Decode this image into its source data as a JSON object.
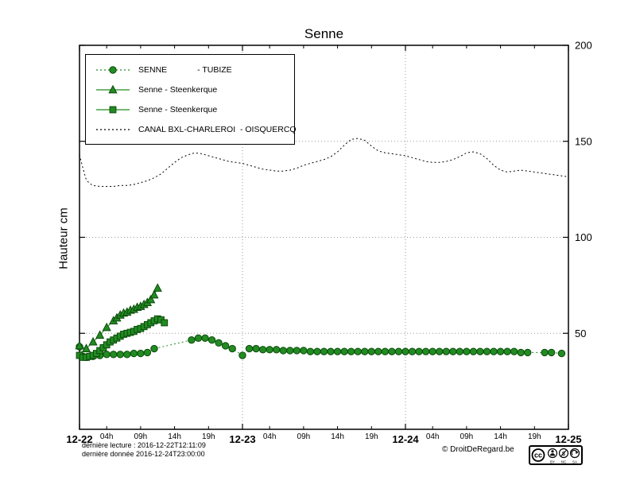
{
  "chart_data": {
    "type": "line",
    "title": "Senne",
    "xlabel": "",
    "ylabel": "Hauteur cm",
    "x_unit": "hours since 2016-12-22 00:00",
    "xlim": [
      0,
      72
    ],
    "ylim": [
      0,
      200
    ],
    "grid": true,
    "legend_position": "top-left",
    "x_major_ticks": [
      {
        "t": 0,
        "label": "12-22"
      },
      {
        "t": 24,
        "label": "12-23"
      },
      {
        "t": 48,
        "label": "12-24"
      },
      {
        "t": 72,
        "label": "12-25"
      }
    ],
    "x_minor_ticks": [
      {
        "t": 4,
        "label": "04h"
      },
      {
        "t": 9,
        "label": "09h"
      },
      {
        "t": 14,
        "label": "14h"
      },
      {
        "t": 19,
        "label": "19h"
      },
      {
        "t": 28,
        "label": "04h"
      },
      {
        "t": 33,
        "label": "09h"
      },
      {
        "t": 38,
        "label": "14h"
      },
      {
        "t": 43,
        "label": "19h"
      },
      {
        "t": 52,
        "label": "04h"
      },
      {
        "t": 57,
        "label": "09h"
      },
      {
        "t": 62,
        "label": "14h"
      },
      {
        "t": 67,
        "label": "19h"
      }
    ],
    "y_ticks": [
      {
        "v": 50,
        "label": "50"
      },
      {
        "v": 100,
        "label": "100"
      },
      {
        "v": 150,
        "label": "150"
      },
      {
        "v": 200,
        "label": "200"
      }
    ],
    "series": [
      {
        "name": "SENNE             - TUBIZE",
        "marker": "circle",
        "line": "dotted",
        "color": "#228b22",
        "edge": "#0b4a0b",
        "points": [
          [
            0,
            43
          ],
          [
            0.5,
            38
          ],
          [
            1,
            37.5
          ],
          [
            1.5,
            38
          ],
          [
            2,
            38
          ],
          [
            3,
            38.5
          ],
          [
            4,
            39
          ],
          [
            5,
            39
          ],
          [
            6,
            39
          ],
          [
            7,
            39
          ],
          [
            8,
            39.5
          ],
          [
            9,
            39.5
          ],
          [
            10,
            40
          ],
          [
            11,
            42
          ],
          [
            16.5,
            46.5
          ],
          [
            17.5,
            47.5
          ],
          [
            18.5,
            47.5
          ],
          [
            19.5,
            46.5
          ],
          [
            20.5,
            45
          ],
          [
            21.5,
            43.5
          ],
          [
            22.5,
            42
          ],
          [
            24,
            38.5
          ],
          [
            25,
            42
          ],
          [
            26,
            42
          ],
          [
            27,
            41.5
          ],
          [
            28,
            41.5
          ],
          [
            29,
            41.5
          ],
          [
            30,
            41
          ],
          [
            31,
            41
          ],
          [
            32,
            41
          ],
          [
            33,
            41
          ],
          [
            34,
            40.5
          ],
          [
            35,
            40.5
          ],
          [
            36,
            40.5
          ],
          [
            37,
            40.5
          ],
          [
            38,
            40.5
          ],
          [
            39,
            40.5
          ],
          [
            40,
            40.5
          ],
          [
            41,
            40.5
          ],
          [
            42,
            40.5
          ],
          [
            43,
            40.5
          ],
          [
            44,
            40.5
          ],
          [
            45,
            40.5
          ],
          [
            46,
            40.5
          ],
          [
            47,
            40.5
          ],
          [
            48,
            40.5
          ],
          [
            49,
            40.5
          ],
          [
            50,
            40.5
          ],
          [
            51,
            40.5
          ],
          [
            52,
            40.5
          ],
          [
            53,
            40.5
          ],
          [
            54,
            40.5
          ],
          [
            55,
            40.5
          ],
          [
            56,
            40.5
          ],
          [
            57,
            40.5
          ],
          [
            58,
            40.5
          ],
          [
            59,
            40.5
          ],
          [
            60,
            40.5
          ],
          [
            61,
            40.5
          ],
          [
            62,
            40.5
          ],
          [
            63,
            40.5
          ],
          [
            64,
            40.5
          ],
          [
            65,
            40
          ],
          [
            66,
            40
          ],
          [
            68.5,
            40
          ],
          [
            69.5,
            40
          ],
          [
            71,
            39.5
          ]
        ]
      },
      {
        "name": "Senne - Steenkerque",
        "marker": "triangle",
        "line": "solid",
        "color": "#228b22",
        "edge": "#0b4a0b",
        "points": [
          [
            0,
            43.5
          ],
          [
            1,
            42
          ],
          [
            2,
            45.5
          ],
          [
            3,
            49
          ],
          [
            4,
            53
          ],
          [
            5,
            56.5
          ],
          [
            5.5,
            58
          ],
          [
            6,
            59.5
          ],
          [
            6.5,
            60.5
          ],
          [
            7,
            61
          ],
          [
            7.5,
            62
          ],
          [
            8,
            62.5
          ],
          [
            8.5,
            63.5
          ],
          [
            9,
            64
          ],
          [
            9.5,
            65
          ],
          [
            10,
            66
          ],
          [
            10.5,
            67.5
          ],
          [
            11,
            70
          ],
          [
            11.5,
            73.5
          ]
        ]
      },
      {
        "name": "Senne - Steenkerque",
        "marker": "square",
        "line": "solid",
        "color": "#228b22",
        "edge": "#0b4a0b",
        "points": [
          [
            0,
            38.5
          ],
          [
            0.5,
            37.5
          ],
          [
            1,
            37.5
          ],
          [
            1.5,
            38
          ],
          [
            2,
            38.5
          ],
          [
            2.5,
            39.5
          ],
          [
            3,
            41
          ],
          [
            3.5,
            42.5
          ],
          [
            4,
            44
          ],
          [
            4.5,
            45.5
          ],
          [
            5,
            46.5
          ],
          [
            5.5,
            47.5
          ],
          [
            6,
            48.5
          ],
          [
            6.5,
            49.5
          ],
          [
            7,
            50
          ],
          [
            7.5,
            50.5
          ],
          [
            8,
            51
          ],
          [
            8.5,
            52
          ],
          [
            9,
            52.5
          ],
          [
            9.5,
            53.5
          ],
          [
            10,
            54.5
          ],
          [
            10.5,
            55.5
          ],
          [
            11,
            56.5
          ],
          [
            11.5,
            57.5
          ],
          [
            12,
            57
          ],
          [
            12.5,
            55.5
          ]
        ]
      },
      {
        "name": "CANAL BXL-CHARLEROI  - OISQUERCQ",
        "marker": "none",
        "line": "dotted",
        "color": "#000000",
        "edge": "#000000",
        "points": [
          [
            0,
            143
          ],
          [
            0.5,
            136
          ],
          [
            1,
            130
          ],
          [
            1.5,
            128
          ],
          [
            2,
            127
          ],
          [
            3,
            126.5
          ],
          [
            4,
            126.5
          ],
          [
            5,
            126.5
          ],
          [
            6,
            127
          ],
          [
            7,
            127
          ],
          [
            8,
            127.5
          ],
          [
            9,
            128.5
          ],
          [
            10,
            129.5
          ],
          [
            11,
            131
          ],
          [
            12,
            133
          ],
          [
            13,
            136
          ],
          [
            14,
            139
          ],
          [
            15,
            141.5
          ],
          [
            16,
            143
          ],
          [
            17,
            144
          ],
          [
            18,
            143.5
          ],
          [
            19,
            142.5
          ],
          [
            20,
            141.5
          ],
          [
            21,
            140.5
          ],
          [
            22,
            139.5
          ],
          [
            23,
            139
          ],
          [
            24,
            138.5
          ],
          [
            25,
            137.5
          ],
          [
            26,
            136.5
          ],
          [
            27,
            135.5
          ],
          [
            28,
            135
          ],
          [
            29,
            134.5
          ],
          [
            30,
            134.5
          ],
          [
            31,
            135
          ],
          [
            32,
            136
          ],
          [
            33,
            137.5
          ],
          [
            34,
            138.5
          ],
          [
            35,
            139.5
          ],
          [
            36,
            140.5
          ],
          [
            37,
            142
          ],
          [
            38,
            144.5
          ],
          [
            39,
            148
          ],
          [
            40,
            151
          ],
          [
            41,
            151.5
          ],
          [
            42,
            150.5
          ],
          [
            43,
            147.5
          ],
          [
            44,
            145
          ],
          [
            45,
            144
          ],
          [
            46,
            143.5
          ],
          [
            47,
            143
          ],
          [
            48,
            142.5
          ],
          [
            49,
            141.5
          ],
          [
            50,
            140.5
          ],
          [
            51,
            139.5
          ],
          [
            52,
            139
          ],
          [
            53,
            139
          ],
          [
            54,
            139.5
          ],
          [
            55,
            140.5
          ],
          [
            56,
            142
          ],
          [
            57,
            144
          ],
          [
            58,
            144.5
          ],
          [
            59,
            143.5
          ],
          [
            60,
            141
          ],
          [
            61,
            137.5
          ],
          [
            62,
            135
          ],
          [
            63,
            134
          ],
          [
            64,
            134.5
          ],
          [
            65,
            135
          ],
          [
            66,
            134.5
          ],
          [
            67,
            134
          ],
          [
            68,
            133.5
          ],
          [
            69,
            133
          ],
          [
            70,
            132.5
          ],
          [
            71,
            132
          ],
          [
            72,
            131.5
          ]
        ]
      }
    ]
  },
  "footer": {
    "last_reading": "dernière lecture : 2016-12-22T12:11:09",
    "last_data": "dernière donnée  2016-12-24T23:00:00",
    "copyright": "© DroitDeRegard.be",
    "license_badge": {
      "cc": "cc",
      "by": "BY",
      "nc": "NC",
      "sa": "SA"
    }
  }
}
